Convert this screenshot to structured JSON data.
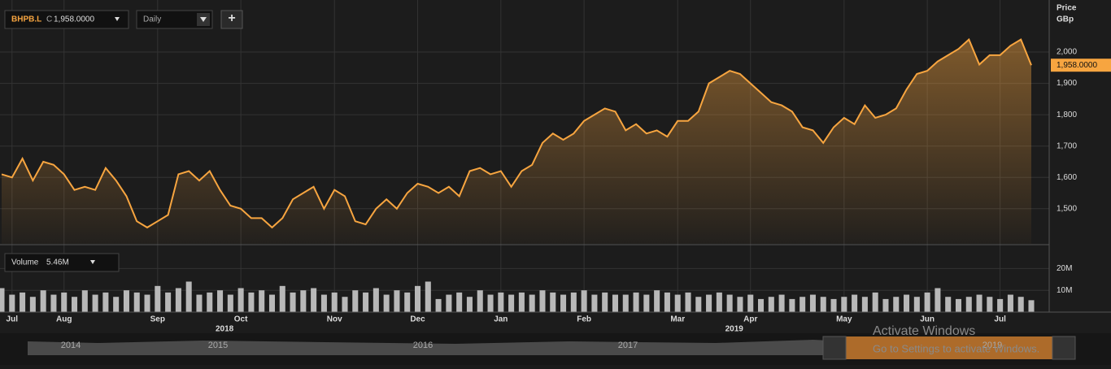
{
  "toolbar": {
    "symbol": "BHPB.L",
    "close_prefix": "C",
    "close": "1,958.0000",
    "interval": "Daily",
    "add": "+"
  },
  "chart_data": [
    {
      "type": "area",
      "y_label": "Price",
      "y_unit": "GBp",
      "last_value_label": "1,958.0000",
      "color": "#f7a540",
      "grid": true,
      "categories": [
        null,
        "Jul",
        null,
        null,
        null,
        null,
        "Aug",
        null,
        null,
        null,
        null,
        null,
        null,
        null,
        null,
        "Sep",
        null,
        null,
        null,
        null,
        null,
        null,
        null,
        "Oct",
        null,
        null,
        null,
        null,
        null,
        null,
        null,
        null,
        "Nov",
        null,
        null,
        null,
        null,
        null,
        null,
        null,
        "Dec",
        null,
        null,
        null,
        null,
        null,
        null,
        null,
        "Jan",
        null,
        null,
        null,
        null,
        null,
        null,
        null,
        "Feb",
        null,
        null,
        null,
        null,
        null,
        null,
        null,
        null,
        "Mar",
        null,
        null,
        null,
        null,
        null,
        null,
        "Apr",
        null,
        null,
        null,
        null,
        null,
        null,
        null,
        null,
        "May",
        null,
        null,
        null,
        null,
        null,
        null,
        null,
        "Jun",
        null,
        null,
        null,
        null,
        null,
        null,
        "Jul",
        null,
        null,
        null
      ],
      "x_year_labels": [
        "2018",
        "2019"
      ],
      "values": [
        1610,
        1600,
        1660,
        1590,
        1650,
        1640,
        1610,
        1560,
        1570,
        1560,
        1630,
        1590,
        1540,
        1460,
        1440,
        1460,
        1480,
        1610,
        1620,
        1590,
        1620,
        1560,
        1510,
        1500,
        1470,
        1470,
        1440,
        1470,
        1530,
        1550,
        1570,
        1500,
        1560,
        1540,
        1460,
        1450,
        1500,
        1530,
        1500,
        1550,
        1580,
        1570,
        1550,
        1570,
        1540,
        1620,
        1630,
        1610,
        1620,
        1570,
        1620,
        1640,
        1710,
        1740,
        1720,
        1740,
        1780,
        1800,
        1820,
        1810,
        1750,
        1770,
        1740,
        1750,
        1730,
        1780,
        1780,
        1810,
        1900,
        1920,
        1940,
        1930,
        1900,
        1870,
        1840,
        1830,
        1810,
        1760,
        1750,
        1710,
        1760,
        1790,
        1770,
        1830,
        1790,
        1800,
        1820,
        1880,
        1930,
        1940,
        1970,
        1990,
        2010,
        2040,
        1960,
        1990,
        1990,
        2020,
        2040,
        1958
      ],
      "ylim": [
        1388,
        2166
      ],
      "yticks": [
        {
          "value": 1500,
          "label": "1,500"
        },
        {
          "value": 1600,
          "label": "1,600"
        },
        {
          "value": 1700,
          "label": "1,700"
        },
        {
          "value": 1800,
          "label": "1,800"
        },
        {
          "value": 1900,
          "label": "1,900"
        },
        {
          "value": 2000,
          "label": "2,000"
        }
      ]
    },
    {
      "type": "bar",
      "name": "Volume",
      "last_label": "5.46M",
      "color": "#b8b8b8",
      "values": [
        11,
        8,
        9,
        7,
        10,
        8,
        9,
        7,
        10,
        8,
        9,
        7,
        10,
        9,
        8,
        12,
        9,
        11,
        14,
        8,
        9,
        10,
        8,
        11,
        9,
        10,
        8,
        12,
        9,
        10,
        11,
        8,
        9,
        7,
        10,
        9,
        11,
        8,
        10,
        9,
        12,
        14,
        6,
        8,
        9,
        7,
        10,
        8,
        9,
        8,
        9,
        8,
        10,
        9,
        8,
        9,
        10,
        8,
        9,
        8,
        8,
        9,
        8,
        10,
        9,
        8,
        9,
        7,
        8,
        9,
        8,
        7,
        8,
        6,
        7,
        8,
        6,
        7,
        8,
        7,
        6,
        7,
        8,
        7,
        9,
        6,
        7,
        8,
        7,
        9,
        11,
        7,
        6,
        7,
        8,
        7,
        6,
        8,
        7,
        5.46
      ],
      "ylim": [
        0,
        27.6
      ],
      "yticks": [
        {
          "value": 10,
          "label": "10M"
        },
        {
          "value": 20,
          "label": "20M"
        }
      ]
    }
  ],
  "navigator": {
    "years": [
      "2014",
      "2015",
      "2016",
      "2017",
      "2019"
    ]
  },
  "watermark": {
    "title": "Activate Windows",
    "text": "Go to Settings to activate Windows."
  }
}
